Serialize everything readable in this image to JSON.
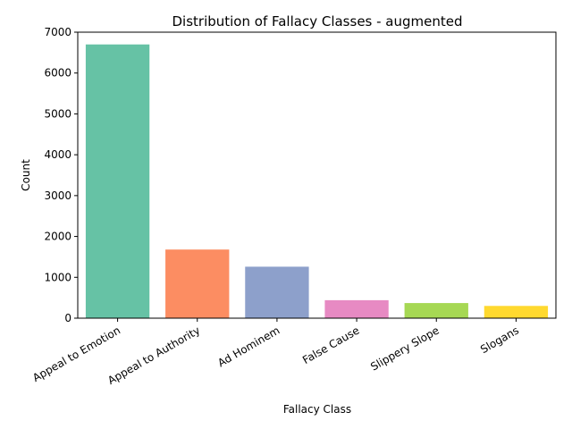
{
  "chart_data": {
    "type": "bar",
    "title": "Distribution of Fallacy Classes - augmented",
    "xlabel": "Fallacy Class",
    "ylabel": "Count",
    "categories": [
      "Appeal to Emotion",
      "Appeal to Authority",
      "Ad Hominem",
      "False Cause",
      "Slippery Slope",
      "Slogans"
    ],
    "values": [
      6700,
      1680,
      1260,
      440,
      370,
      300
    ],
    "ylim": [
      0,
      7000
    ],
    "yticks": [
      "0",
      "1000",
      "2000",
      "3000",
      "4000",
      "5000",
      "6000",
      "7000"
    ],
    "colors": [
      "#66c2a5",
      "#fc8d62",
      "#8da0cb",
      "#e78ac3",
      "#a6d854",
      "#ffd92f"
    ],
    "grid": false,
    "legend": "none"
  }
}
